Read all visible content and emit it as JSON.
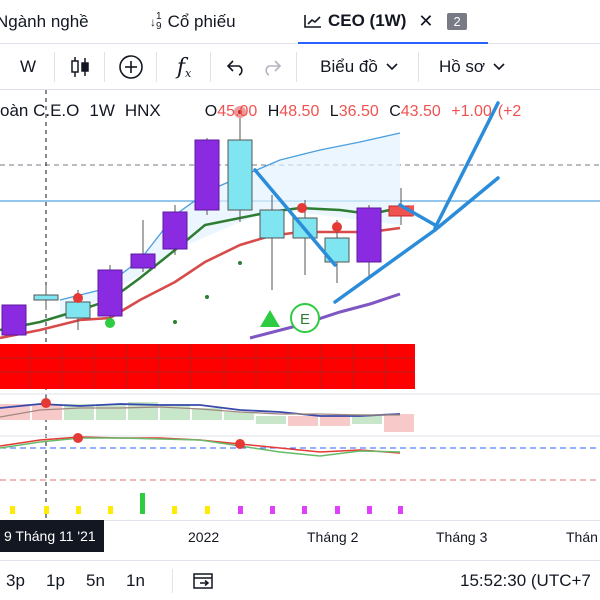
{
  "tabs": [
    {
      "label": "Ngành nghề"
    },
    {
      "label": "Cổ phiếu",
      "icon": "sort-numeric-icon"
    },
    {
      "label": "CEO (1W)",
      "icon": "chart-icon",
      "close": "✕",
      "count": "2"
    }
  ],
  "toolbar": {
    "interval": "W",
    "chart_type_icon": "candles-icon",
    "add_indicator_icon": "plus-circle-icon",
    "fx_label": "f",
    "fx_sub": "x",
    "undo_icon": "undo-icon",
    "redo_icon": "redo-icon",
    "chart_menu": "Biểu đồ",
    "profile_menu": "Hồ sơ"
  },
  "legend": {
    "name": "oàn C.E.O",
    "interval": "1W",
    "exchange": "HNX",
    "o_label": "O",
    "o": "45.00",
    "h_label": "H",
    "h": "48.50",
    "l_label": "L",
    "l": "36.50",
    "c_label": "C",
    "c": "43.50",
    "change": "+1.00",
    "change_pct": "(+2"
  },
  "time_axis": {
    "cursor": "9 Tháng 11 '21",
    "labels": [
      "2022",
      "Tháng 2",
      "Tháng 3",
      "Thán"
    ]
  },
  "bottom": {
    "ranges": [
      "3p",
      "1p",
      "5n",
      "1n"
    ],
    "goto_icon": "calendar-range-icon",
    "clock": "15:52:30 (UTC+7"
  },
  "colors": {
    "up": "#26a69a",
    "candle_up": "#8a2be2",
    "candle_down": "#7fe5f0",
    "trend": "#2b8cd9",
    "accent": "#2962ff"
  }
}
